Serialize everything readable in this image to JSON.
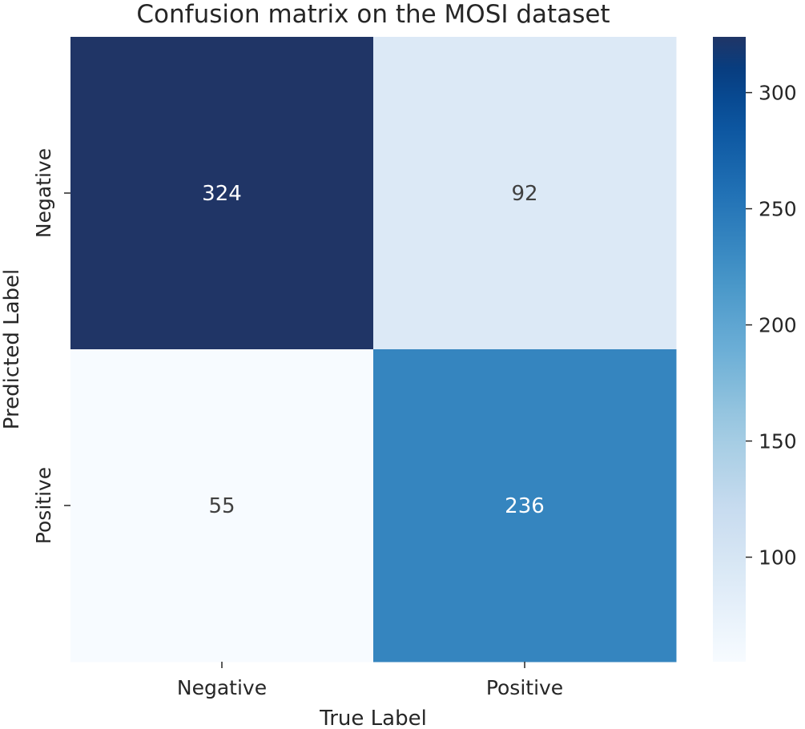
{
  "chart_data": {
    "type": "heatmap",
    "title": "Confusion matrix on the MOSI dataset",
    "xlabel": "True Label",
    "ylabel": "Predicted Label",
    "x_categories": [
      "Negative",
      "Positive"
    ],
    "y_categories": [
      "Negative",
      "Positive"
    ],
    "values": [
      [
        324,
        92
      ],
      [
        55,
        236
      ]
    ],
    "colormap": "Blues",
    "colorbar": {
      "min": 55,
      "max": 324,
      "ticks": [
        100,
        150,
        200,
        250,
        300
      ],
      "tick_labels": [
        "100",
        "150",
        "200",
        "250",
        "300"
      ]
    },
    "colors": {
      "dark_annotation": "#ffffff",
      "light_annotation": "#404040",
      "text": "#262626",
      "background": "#ffffff"
    }
  }
}
